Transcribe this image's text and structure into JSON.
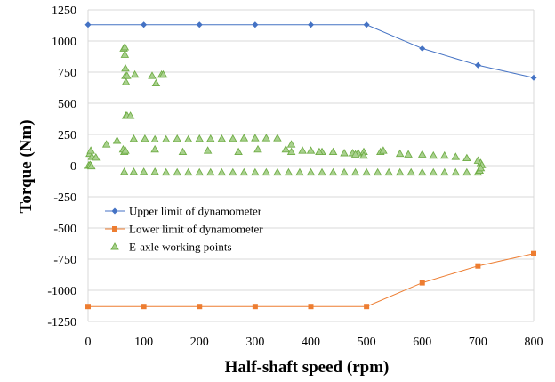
{
  "chart_data": {
    "type": "scatter",
    "xlabel": "Half-shaft speed (rpm)",
    "ylabel": "Torque (Nm)",
    "xlim": [
      0,
      800
    ],
    "ylim": [
      -1250,
      1250
    ],
    "x_ticks": [
      0,
      100,
      200,
      300,
      400,
      500,
      600,
      700,
      800
    ],
    "y_ticks": [
      -1250,
      -1000,
      -750,
      -500,
      -250,
      0,
      250,
      500,
      750,
      1000,
      1250
    ],
    "x_tick_labels": [
      "0",
      "100",
      "200",
      "300",
      "400",
      "500",
      "600",
      "700",
      "800"
    ],
    "y_tick_labels": [
      "-1250",
      "-1000",
      "-750",
      "-500",
      "-250",
      "0",
      "250",
      "500",
      "750",
      "1000",
      "1250"
    ],
    "grid": "horizontal",
    "legend_position": "lower-left",
    "series": [
      {
        "name": "Upper limit of dynamometer",
        "kind": "line",
        "marker": "diamond",
        "color": "#4472c4",
        "x": [
          0,
          100,
          200,
          300,
          400,
          500,
          600,
          700,
          800
        ],
        "y": [
          1130,
          1130,
          1130,
          1130,
          1130,
          1130,
          940,
          805,
          705
        ]
      },
      {
        "name": "Lower limit of dynamometer",
        "kind": "line",
        "marker": "square",
        "color": "#ed7d31",
        "x": [
          0,
          100,
          200,
          300,
          400,
          500,
          600,
          700,
          800
        ],
        "y": [
          -1130,
          -1130,
          -1130,
          -1130,
          -1130,
          -1130,
          -940,
          -805,
          -705
        ]
      },
      {
        "name": "E-axle working points",
        "kind": "scatter",
        "marker": "triangle",
        "color": "#70ad47",
        "fill": "#a9d18e",
        "x": [
          2,
          3,
          5,
          7,
          14,
          33,
          52,
          64,
          66,
          66,
          67,
          67,
          68,
          68,
          70,
          70,
          76,
          84,
          115,
          122,
          132,
          135,
          65,
          82,
          102,
          120,
          140,
          160,
          180,
          200,
          220,
          240,
          260,
          280,
          300,
          320,
          340,
          365,
          385,
          400,
          420,
          440,
          460,
          475,
          485,
          495,
          525,
          530,
          560,
          575,
          600,
          620,
          640,
          660,
          680,
          700,
          705,
          707,
          63,
          67,
          120,
          170,
          215,
          270,
          305,
          355,
          365,
          415,
          480,
          495,
          65,
          82,
          100,
          120,
          140,
          160,
          180,
          200,
          220,
          240,
          260,
          280,
          300,
          320,
          340,
          360,
          380,
          400,
          420,
          440,
          460,
          480,
          500,
          520,
          540,
          560,
          580,
          600,
          620,
          640,
          660,
          680,
          700,
          703,
          705,
          1,
          4,
          6
        ],
        "y": [
          0,
          95,
          120,
          70,
          65,
          170,
          200,
          940,
          950,
          890,
          780,
          720,
          670,
          400,
          400,
          720,
          400,
          730,
          720,
          660,
          730,
          730,
          110,
          215,
          215,
          210,
          210,
          215,
          210,
          215,
          215,
          215,
          215,
          220,
          220,
          220,
          220,
          170,
          120,
          120,
          110,
          110,
          100,
          100,
          100,
          110,
          110,
          120,
          95,
          90,
          90,
          80,
          80,
          70,
          60,
          40,
          20,
          5,
          130,
          120,
          130,
          110,
          120,
          110,
          130,
          130,
          110,
          110,
          90,
          80,
          -50,
          -50,
          -50,
          -50,
          -55,
          -55,
          -55,
          -55,
          -55,
          -55,
          -55,
          -55,
          -55,
          -55,
          -55,
          -55,
          -55,
          -55,
          -55,
          -55,
          -55,
          -55,
          -55,
          -55,
          -55,
          -55,
          -55,
          -55,
          -55,
          -55,
          -55,
          -55,
          -55,
          -40,
          -20,
          0,
          5,
          -5
        ]
      }
    ]
  }
}
